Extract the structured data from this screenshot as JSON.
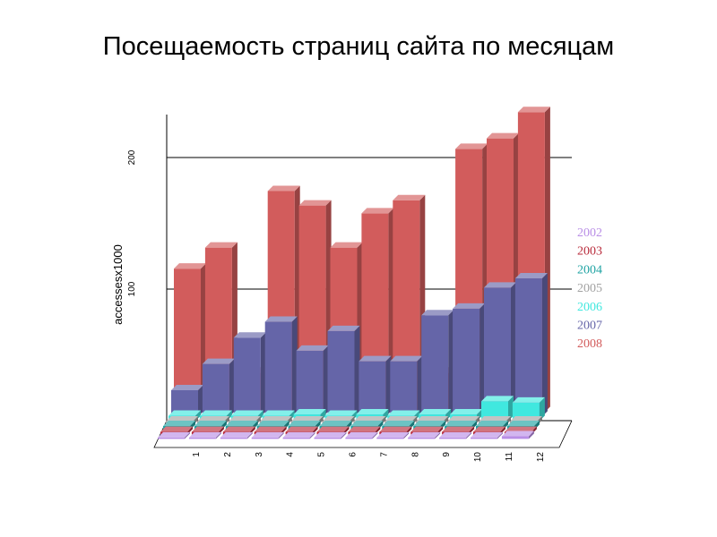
{
  "page": {
    "title": "Посещаемость страниц сайта по месяцам"
  },
  "chart_data": {
    "type": "bar",
    "subtype": "3d-depth",
    "title": "Посещаемость страниц сайта по месяцам",
    "xlabel": "",
    "ylabel": "accessesx1000",
    "ylim": [
      0,
      230
    ],
    "yticks": [
      100,
      200
    ],
    "grid": true,
    "legend_position": "right",
    "categories": [
      "1",
      "2",
      "3",
      "4",
      "5",
      "6",
      "7",
      "8",
      "9",
      "10",
      "11",
      "12"
    ],
    "series": [
      {
        "name": "2002",
        "color": "#b98ee6",
        "values": [
          1,
          1,
          1,
          1,
          1,
          1,
          1,
          1,
          1,
          1,
          1,
          2
        ]
      },
      {
        "name": "2003",
        "color": "#b82a3a",
        "values": [
          2,
          2,
          2,
          2,
          2,
          2,
          2,
          2,
          2,
          2,
          2,
          2
        ]
      },
      {
        "name": "2004",
        "color": "#1fa3a3",
        "values": [
          3,
          3,
          3,
          3,
          3,
          3,
          3,
          3,
          3,
          3,
          3,
          3
        ]
      },
      {
        "name": "2005",
        "color": "#a2a2a2",
        "values": [
          3,
          3,
          3,
          3,
          3,
          3,
          3,
          3,
          3,
          3,
          3,
          3
        ]
      },
      {
        "name": "2006",
        "color": "#40e8df",
        "values": [
          4,
          4,
          4,
          4,
          5,
          4,
          5,
          4,
          5,
          5,
          15,
          14
        ]
      },
      {
        "name": "2007",
        "color": "#6565a8",
        "values": [
          20,
          40,
          60,
          72,
          50,
          65,
          42,
          42,
          77,
          82,
          98,
          105
        ]
      },
      {
        "name": "2008",
        "color": "#d25c5c",
        "values": [
          109,
          125,
          30,
          168,
          157,
          125,
          151,
          161,
          30,
          200,
          208,
          228
        ]
      }
    ]
  }
}
